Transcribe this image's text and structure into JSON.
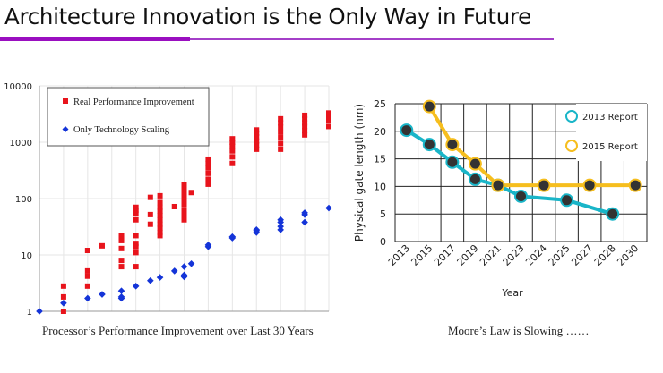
{
  "slide": {
    "title": "Architecture Innovation is the Only Way in Future",
    "accent_color": "#9a0fc0"
  },
  "captions": {
    "left": "Processor’s Performance Improvement over Last 30 Years",
    "right": "Moore’s Law is Slowing ……"
  },
  "chart_data": [
    {
      "type": "scatter",
      "title": "Processor’s Performance Improvement over Last 30 Years",
      "xlabel": "",
      "ylabel": "",
      "yscale": "log",
      "ylim": [
        1,
        10000
      ],
      "y_ticks": [
        "1",
        "10",
        "100",
        "1000",
        "10000"
      ],
      "x_grid_count": 11,
      "grid": true,
      "legend": "top-left",
      "series": [
        {
          "name": "Real Performance Improvement",
          "marker": "square",
          "color": "#e8141c",
          "points": [
            [
              1,
              1
            ],
            [
              1,
              1.8
            ],
            [
              1,
              2.8
            ],
            [
              2,
              2.8
            ],
            [
              2,
              4.2
            ],
            [
              2,
              5.2
            ],
            [
              2,
              12
            ],
            [
              2.6,
              14.5
            ],
            [
              3.4,
              6.2
            ],
            [
              3.4,
              8
            ],
            [
              3.4,
              13
            ],
            [
              3.4,
              18
            ],
            [
              3.4,
              20
            ],
            [
              3.4,
              22
            ],
            [
              4,
              6.2
            ],
            [
              4,
              11
            ],
            [
              4,
              14
            ],
            [
              4,
              16
            ],
            [
              4,
              22
            ],
            [
              4,
              42
            ],
            [
              4,
              55
            ],
            [
              4,
              62
            ],
            [
              4,
              70
            ],
            [
              4.6,
              35
            ],
            [
              4.6,
              52
            ],
            [
              4.6,
              105
            ],
            [
              5,
              22
            ],
            [
              5,
              25
            ],
            [
              5,
              30
            ],
            [
              5,
              35
            ],
            [
              5,
              42
            ],
            [
              5,
              50
            ],
            [
              5,
              60
            ],
            [
              5,
              70
            ],
            [
              5,
              85
            ],
            [
              5,
              112
            ],
            [
              5.6,
              72
            ],
            [
              6,
              42
            ],
            [
              6,
              50
            ],
            [
              6,
              60
            ],
            [
              6,
              78
            ],
            [
              6,
              90
            ],
            [
              6,
              110
            ],
            [
              6,
              130
            ],
            [
              6,
              155
            ],
            [
              6,
              175
            ],
            [
              6.3,
              128
            ],
            [
              7,
              180
            ],
            [
              7,
              220
            ],
            [
              7,
              280
            ],
            [
              7,
              350
            ],
            [
              7,
              420
            ],
            [
              7,
              500
            ],
            [
              8,
              420
            ],
            [
              8,
              550
            ],
            [
              8,
              700
            ],
            [
              8,
              850
            ],
            [
              8,
              1000
            ],
            [
              8,
              1150
            ],
            [
              9,
              750
            ],
            [
              9,
              900
            ],
            [
              9,
              1050
            ],
            [
              9,
              1250
            ],
            [
              9,
              1450
            ],
            [
              9,
              1650
            ],
            [
              10,
              750
            ],
            [
              10,
              950
            ],
            [
              10,
              1200
            ],
            [
              10,
              1500
            ],
            [
              10,
              1850
            ],
            [
              10,
              2200
            ],
            [
              10,
              2600
            ],
            [
              11,
              1350
            ],
            [
              11,
              1600
            ],
            [
              11,
              1900
            ],
            [
              11,
              2200
            ],
            [
              11,
              2600
            ],
            [
              11,
              3000
            ],
            [
              12,
              1900
            ],
            [
              12,
              2400
            ],
            [
              12,
              2900
            ],
            [
              12,
              3300
            ]
          ]
        },
        {
          "name": "Only Technology Scaling",
          "marker": "diamond",
          "color": "#1434d8",
          "points": [
            [
              0,
              1
            ],
            [
              1,
              1.4
            ],
            [
              2,
              1.7
            ],
            [
              2.6,
              2
            ],
            [
              3.4,
              1.7
            ],
            [
              3.4,
              1.8
            ],
            [
              3.4,
              2.3
            ],
            [
              4,
              2.8
            ],
            [
              4.6,
              3.5
            ],
            [
              5,
              4
            ],
            [
              5.6,
              5.2
            ],
            [
              6,
              4.1
            ],
            [
              6,
              4.4
            ],
            [
              6,
              6.2
            ],
            [
              6.3,
              7
            ],
            [
              7,
              14
            ],
            [
              7,
              15
            ],
            [
              8,
              20
            ],
            [
              8,
              21
            ],
            [
              9,
              25
            ],
            [
              9,
              27
            ],
            [
              9,
              28
            ],
            [
              10,
              28
            ],
            [
              10,
              32
            ],
            [
              10,
              38
            ],
            [
              10,
              42
            ],
            [
              11,
              38
            ],
            [
              11,
              52
            ],
            [
              11,
              56
            ],
            [
              12,
              68
            ]
          ]
        }
      ]
    },
    {
      "type": "line",
      "title": "Moore’s Law is Slowing ……",
      "xlabel": "Year",
      "ylabel": "Physical gate length (nm)",
      "categories": [
        "2013",
        "2015",
        "2017",
        "2019",
        "2021",
        "2023",
        "2024",
        "2025",
        "2027",
        "2028",
        "2030"
      ],
      "ylim": [
        0,
        25
      ],
      "y_ticks": [
        0,
        5,
        10,
        15,
        20,
        25
      ],
      "grid": true,
      "legend": "top-right",
      "series": [
        {
          "name": "2013 Report",
          "color": "#19b5c8",
          "values": [
            20.2,
            17.6,
            14.4,
            11.3,
            10.2,
            8.2,
            null,
            7.5,
            null,
            5.0,
            null
          ]
        },
        {
          "name": "2015 Report",
          "color": "#f6be1e",
          "values": [
            null,
            24.5,
            17.6,
            14.1,
            10.2,
            null,
            10.2,
            null,
            10.2,
            null,
            10.2
          ]
        }
      ]
    }
  ]
}
